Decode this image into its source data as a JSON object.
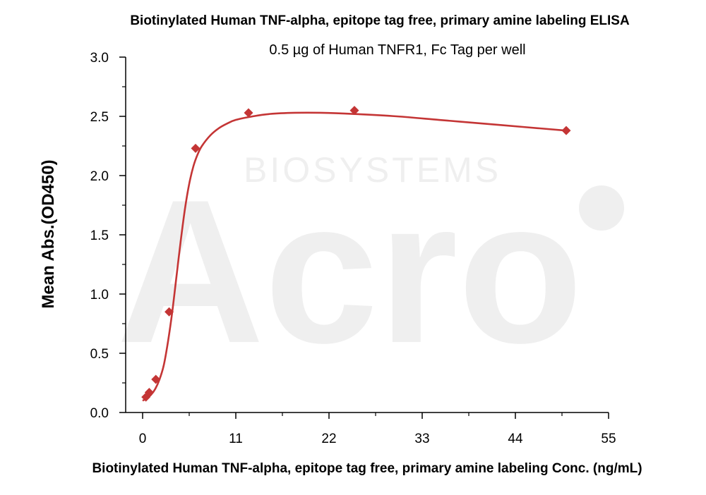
{
  "watermark": {
    "brand": "Acro",
    "tagline": "BIOSYSTEMS"
  },
  "chart_data": {
    "type": "scatter",
    "title": "Biotinylated Human TNF-alpha, epitope tag free, primary amine labeling ELISA",
    "subtitle": "0.5 µg of Human TNFR1, Fc Tag per well",
    "xlabel": "Biotinylated Human TNF-alpha, epitope tag free, primary amine labeling Conc. (ng/mL)",
    "ylabel": "Mean Abs.(OD450)",
    "xlim": [
      -2,
      55
    ],
    "ylim": [
      0,
      3
    ],
    "x_ticks": [
      0,
      11,
      22,
      33,
      44,
      55
    ],
    "x_tick_labels": [
      "0",
      "11",
      "22",
      "33",
      "44",
      "55"
    ],
    "y_ticks": [
      0,
      0.5,
      1.0,
      1.5,
      2.0,
      2.5,
      3.0
    ],
    "y_tick_labels": [
      "0.0",
      "0.5",
      "1.0",
      "1.5",
      "2.0",
      "2.5",
      "3.0"
    ],
    "grid": false,
    "color": "#c43535",
    "series": [
      {
        "marker": "diamond",
        "x": [
          0.39,
          0.78,
          1.56,
          3.13,
          6.25,
          12.5,
          25,
          50
        ],
        "y": [
          0.13,
          0.17,
          0.28,
          0.85,
          2.23,
          2.53,
          2.55,
          2.38
        ]
      }
    ],
    "fit_curve": [
      [
        0,
        0.1
      ],
      [
        0.5,
        0.12
      ],
      [
        1,
        0.15
      ],
      [
        1.5,
        0.2
      ],
      [
        2,
        0.28
      ],
      [
        2.5,
        0.4
      ],
      [
        3,
        0.6
      ],
      [
        3.5,
        0.85
      ],
      [
        4,
        1.15
      ],
      [
        4.5,
        1.45
      ],
      [
        5,
        1.72
      ],
      [
        5.5,
        1.93
      ],
      [
        6,
        2.08
      ],
      [
        6.5,
        2.18
      ],
      [
        7,
        2.25
      ],
      [
        8,
        2.34
      ],
      [
        9,
        2.4
      ],
      [
        10,
        2.44
      ],
      [
        11,
        2.47
      ],
      [
        13,
        2.5
      ],
      [
        15,
        2.52
      ],
      [
        18,
        2.53
      ],
      [
        21,
        2.53
      ],
      [
        25,
        2.52
      ],
      [
        30,
        2.5
      ],
      [
        35,
        2.47
      ],
      [
        40,
        2.44
      ],
      [
        45,
        2.41
      ],
      [
        50,
        2.38
      ]
    ]
  }
}
